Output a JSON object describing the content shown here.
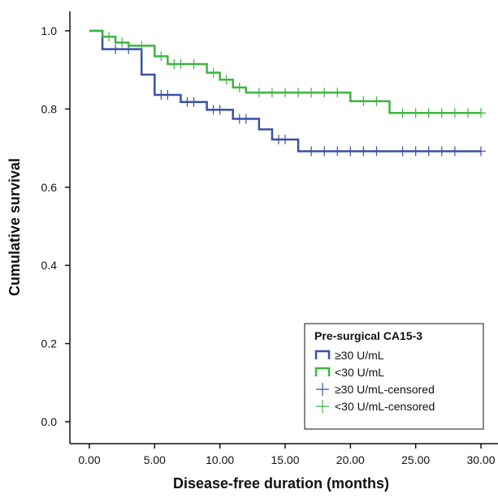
{
  "chart_data": {
    "type": "line",
    "subtype": "kaplan-meier-step",
    "xlabel": "Disease-free duration (months)",
    "ylabel": "Cumulative survival",
    "xlim": [
      0,
      30
    ],
    "ylim": [
      0,
      1.0
    ],
    "x_ticks": [
      "0.00",
      "5.00",
      "10.00",
      "15.00",
      "20.00",
      "25.00",
      "30.00"
    ],
    "x_tick_values": [
      0,
      5,
      10,
      15,
      20,
      25,
      30
    ],
    "y_ticks": [
      "0.0",
      "0.2",
      "0.4",
      "0.6",
      "0.8",
      "1.0"
    ],
    "y_tick_values": [
      0,
      0.2,
      0.4,
      0.6,
      0.8,
      1.0
    ],
    "grid": false,
    "legend": {
      "title": "Pre-surgical CA15-3",
      "placement": "bottom-right",
      "entries": [
        {
          "label": "≥30 U/mL",
          "kind": "step",
          "color": "#3a4fa8"
        },
        {
          "label": "<30 U/mL",
          "kind": "step",
          "color": "#3fb43f"
        },
        {
          "label": "≥30 U/mL-censored",
          "kind": "censor",
          "color": "#3a4fa8"
        },
        {
          "label": "<30 U/mL-censored",
          "kind": "censor",
          "color": "#3fb43f"
        }
      ]
    },
    "series": [
      {
        "name": "≥30 U/mL",
        "color": "#3a4fa8",
        "steps": [
          [
            0,
            1.0
          ],
          [
            1,
            0.953
          ],
          [
            4,
            0.888
          ],
          [
            5,
            0.836
          ],
          [
            7,
            0.818
          ],
          [
            9,
            0.798
          ],
          [
            11,
            0.775
          ],
          [
            13,
            0.748
          ],
          [
            14,
            0.722
          ],
          [
            16,
            0.692
          ],
          [
            30,
            0.692
          ]
        ],
        "censored": [
          [
            2,
            0.953
          ],
          [
            3,
            0.953
          ],
          [
            5.5,
            0.836
          ],
          [
            6,
            0.836
          ],
          [
            7.5,
            0.818
          ],
          [
            8,
            0.818
          ],
          [
            9.5,
            0.798
          ],
          [
            10,
            0.798
          ],
          [
            11.5,
            0.775
          ],
          [
            12,
            0.775
          ],
          [
            14.5,
            0.722
          ],
          [
            15,
            0.722
          ],
          [
            17,
            0.692
          ],
          [
            18,
            0.692
          ],
          [
            19,
            0.692
          ],
          [
            20,
            0.692
          ],
          [
            21,
            0.692
          ],
          [
            22,
            0.692
          ],
          [
            24,
            0.692
          ],
          [
            25,
            0.692
          ],
          [
            26,
            0.692
          ],
          [
            27,
            0.692
          ],
          [
            28,
            0.692
          ],
          [
            30,
            0.692
          ]
        ]
      },
      {
        "name": "<30 U/mL",
        "color": "#3fb43f",
        "steps": [
          [
            0,
            1.0
          ],
          [
            1,
            0.985
          ],
          [
            2,
            0.97
          ],
          [
            3,
            0.962
          ],
          [
            5,
            0.935
          ],
          [
            6,
            0.915
          ],
          [
            9,
            0.893
          ],
          [
            10,
            0.875
          ],
          [
            11,
            0.855
          ],
          [
            12,
            0.842
          ],
          [
            20,
            0.82
          ],
          [
            23,
            0.79
          ],
          [
            30,
            0.79
          ]
        ],
        "censored": [
          [
            1.5,
            0.985
          ],
          [
            2.5,
            0.97
          ],
          [
            4,
            0.962
          ],
          [
            5.5,
            0.935
          ],
          [
            6.5,
            0.915
          ],
          [
            7,
            0.915
          ],
          [
            8,
            0.915
          ],
          [
            9.5,
            0.893
          ],
          [
            10.5,
            0.875
          ],
          [
            11.5,
            0.855
          ],
          [
            13,
            0.842
          ],
          [
            14,
            0.842
          ],
          [
            15,
            0.842
          ],
          [
            16,
            0.842
          ],
          [
            17,
            0.842
          ],
          [
            18,
            0.842
          ],
          [
            19,
            0.842
          ],
          [
            21,
            0.82
          ],
          [
            22,
            0.82
          ],
          [
            24,
            0.79
          ],
          [
            25,
            0.79
          ],
          [
            26,
            0.79
          ],
          [
            27,
            0.79
          ],
          [
            28,
            0.79
          ],
          [
            29,
            0.79
          ],
          [
            30,
            0.79
          ]
        ]
      }
    ]
  }
}
